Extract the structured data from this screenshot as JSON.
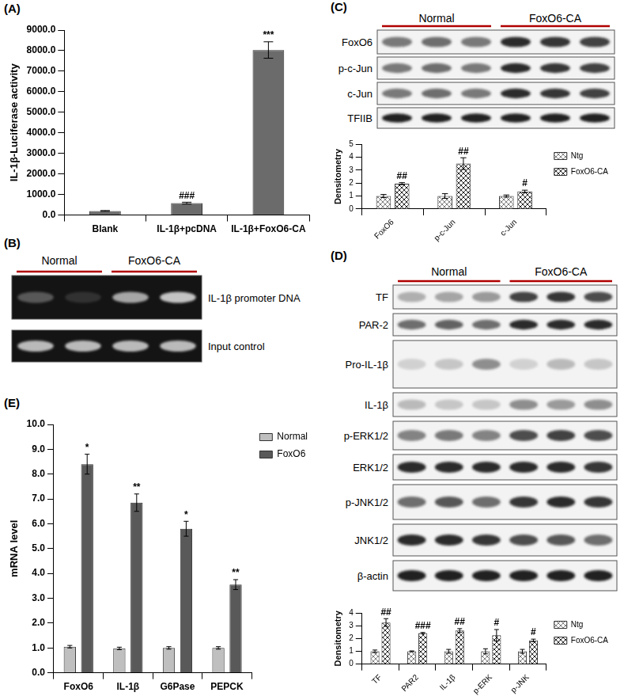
{
  "panel_labels": [
    "(A)",
    "(B)",
    "(C)",
    "(D)",
    "(E)"
  ],
  "chart_data": [
    {
      "type": "bar",
      "categories": [
        "Blank",
        "IL-1β+pcDNA",
        "IL-1β+FoxO6-CA"
      ],
      "y_label": "IL-1β-Luciferase activity",
      "values": [
        200,
        580,
        8030
      ],
      "errors": [
        20,
        45,
        400
      ],
      "annotations": [
        null,
        "###",
        "***"
      ],
      "color": "#6b6b6b",
      "ylim": [
        0,
        9000
      ],
      "yticks": [
        {
          "value": 0,
          "label": "0.0"
        },
        {
          "value": 1000,
          "label": "1000.0"
        },
        {
          "value": 2000,
          "label": "2000.0"
        },
        {
          "value": 3000,
          "label": "3000.0"
        },
        {
          "value": 4000,
          "label": "4000.0"
        },
        {
          "value": 5000,
          "label": "5000.0"
        },
        {
          "value": 6000,
          "label": "6000.0"
        },
        {
          "value": 7000,
          "label": "7000.0"
        },
        {
          "value": 8000,
          "label": "8000.0"
        },
        {
          "value": 9000,
          "label": "9000.0"
        }
      ],
      "grid": false
    },
    {
      "type": "bar",
      "categories": [
        "FoxO6",
        "p-c-Jun",
        "c-Jun"
      ],
      "y_label": "Densitometry",
      "series": [
        {
          "name": "Ntg",
          "color": "#7f7f7f",
          "values": [
            1.0,
            1.0,
            1.0
          ],
          "errors": [
            0.12,
            0.18,
            0.08
          ]
        },
        {
          "name": "FoxO6-CA",
          "color": "#262626",
          "values": [
            1.95,
            3.5,
            1.35
          ],
          "errors": [
            0.08,
            0.45,
            0.1
          ],
          "annotations": [
            "##",
            "##",
            "#"
          ]
        }
      ],
      "ylim": [
        0,
        5
      ],
      "yticks": [
        0,
        1,
        2,
        3,
        4,
        5
      ],
      "legend": "right",
      "grid": false
    },
    {
      "type": "bar",
      "categories": [
        "TF",
        "PAR2",
        "IL-1β",
        "p-ERK",
        "p-JNK"
      ],
      "y_label": "Densitometry",
      "series": [
        {
          "name": "Ntg",
          "color": "#7f7f7f",
          "values": [
            1.0,
            1.0,
            1.0,
            1.0,
            1.0
          ],
          "errors": [
            0.1,
            0.03,
            0.15,
            0.2,
            0.15
          ]
        },
        {
          "name": "FoxO6-CA",
          "color": "#262626",
          "values": [
            3.25,
            2.42,
            2.62,
            2.25,
            1.85
          ],
          "errors": [
            0.3,
            0.05,
            0.15,
            0.45,
            0.1
          ],
          "annotations": [
            "##",
            "###",
            "##",
            "#",
            "#"
          ]
        }
      ],
      "ylim": [
        0,
        4
      ],
      "yticks": [
        0,
        1,
        2,
        3,
        4
      ],
      "legend": "right",
      "grid": false
    },
    {
      "type": "bar",
      "categories": [
        "FoxO6",
        "IL-1β",
        "G6Pase",
        "PEPCK"
      ],
      "y_label": "mRNA level",
      "series": [
        {
          "name": "Normal",
          "color": "#bfbfbf",
          "values": [
            1.05,
            0.98,
            1.0,
            1.0
          ],
          "errors": [
            0.05,
            0.05,
            0.05,
            0.05
          ]
        },
        {
          "name": "FoxO6",
          "color": "#595959",
          "values": [
            8.4,
            6.85,
            5.8,
            3.55
          ],
          "errors": [
            0.4,
            0.35,
            0.3,
            0.2
          ],
          "annotations": [
            "*",
            "**",
            "*",
            "**"
          ]
        }
      ],
      "ylim": [
        0,
        10
      ],
      "yticks": [
        {
          "value": 0,
          "label": "0.0"
        },
        {
          "value": 1,
          "label": "1.0"
        },
        {
          "value": 2,
          "label": "2.0"
        },
        {
          "value": 3,
          "label": "3.0"
        },
        {
          "value": 4,
          "label": "4.0"
        },
        {
          "value": 5,
          "label": "5.0"
        },
        {
          "value": 6,
          "label": "6.0"
        },
        {
          "value": 7,
          "label": "7.0"
        },
        {
          "value": 8,
          "label": "8.0"
        },
        {
          "value": 9,
          "label": "9.0"
        },
        {
          "value": 10,
          "label": "10.0"
        }
      ],
      "legend": "right",
      "grid": false
    }
  ],
  "blots": [
    {
      "groups": [
        "Normal",
        "FoxO6-CA"
      ],
      "rows": [
        "IL-1β promoter DNA",
        "Input control"
      ]
    },
    {
      "groups": [
        "Normal",
        "FoxO6-CA"
      ],
      "rows": [
        "FoxO6",
        "p-c-Jun",
        "c-Jun",
        "TFIIB"
      ]
    },
    {
      "groups": [
        "Normal",
        "FoxO6-CA"
      ],
      "rows": [
        "TF",
        "PAR-2",
        "Pro-IL-1β",
        "IL-1β",
        "p-ERK1/2",
        "ERK1/2",
        "p-JNK1/2",
        "JNK1/2",
        "β-actin"
      ]
    }
  ]
}
